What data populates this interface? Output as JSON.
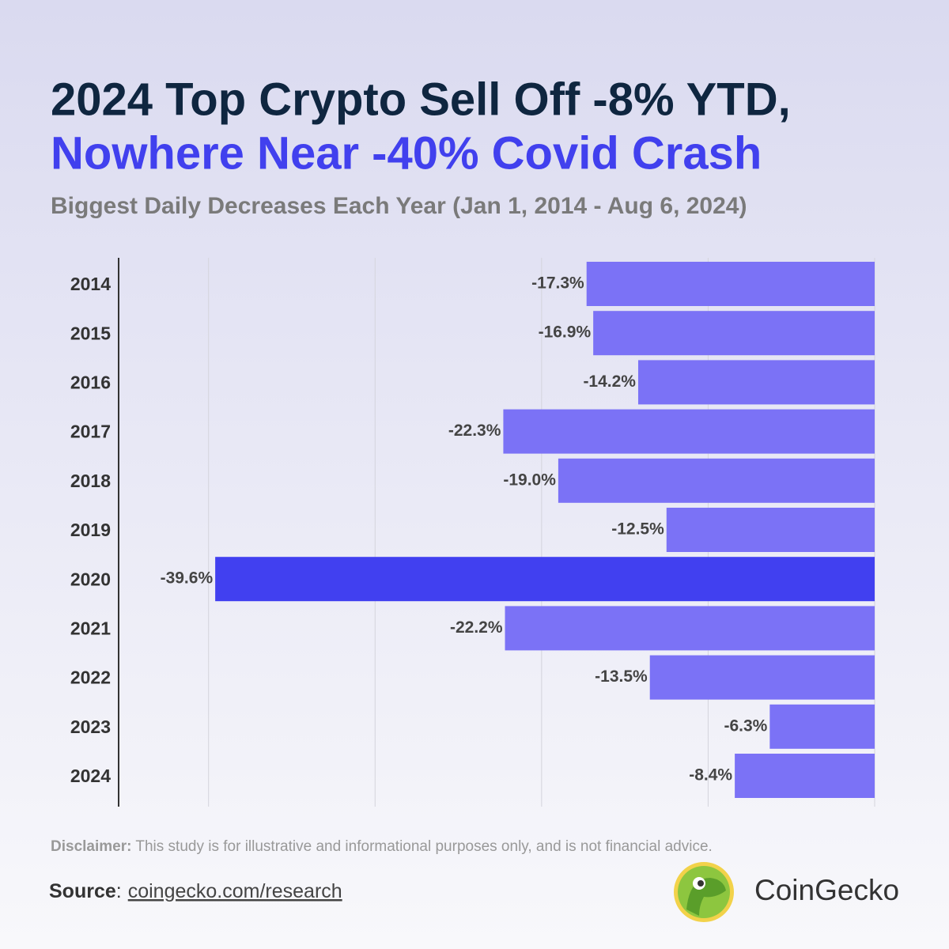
{
  "title_line1": "2024 Top Crypto Sell Off -8% YTD,",
  "title_line2": "Nowhere Near -40% Covid Crash",
  "chart_data": {
    "type": "hbar",
    "subtitle": "Biggest Daily Decreases Each Year (Jan 1, 2014 - Aug 6, 2024)",
    "categories": [
      "2014",
      "2015",
      "2016",
      "2017",
      "2018",
      "2019",
      "2020",
      "2021",
      "2022",
      "2023",
      "2024"
    ],
    "values": [
      -17.3,
      -16.9,
      -14.2,
      -22.3,
      -19.0,
      -12.5,
      -39.6,
      -22.2,
      -13.5,
      -6.3,
      -8.4
    ],
    "value_labels": [
      "-17.3%",
      "-16.9%",
      "-14.2%",
      "-22.3%",
      "-19.0%",
      "-12.5%",
      "-39.6%",
      "-22.2%",
      "-13.5%",
      "-6.3%",
      "-8.4%"
    ],
    "colors": [
      "#7b72f6",
      "#7b72f6",
      "#7b72f6",
      "#7b72f6",
      "#7b72f6",
      "#7b72f6",
      "#4140f0",
      "#7b72f6",
      "#7b72f6",
      "#7b72f6",
      "#7b72f6"
    ],
    "xlim": [
      -45.4,
      0
    ],
    "xticks": [
      -40,
      -30,
      -20,
      -10,
      0
    ],
    "grid": true
  },
  "disclaimer_label": "Disclaimer:",
  "disclaimer_text": " This study is for illustrative and informational purposes only, and is not financial advice.",
  "source_label": "Source",
  "source_separator": ":",
  "source_link": "coingecko.com/research",
  "brand": "CoinGecko"
}
